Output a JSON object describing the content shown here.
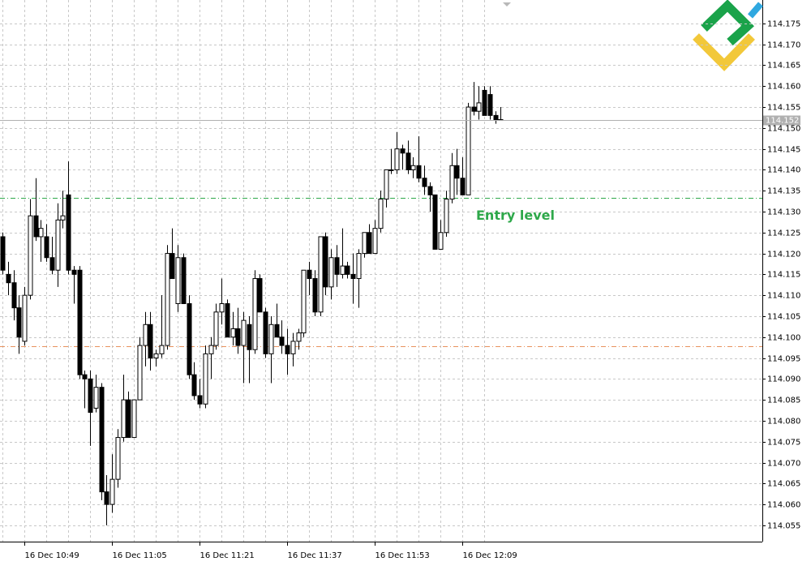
{
  "chart_data": {
    "type": "candlestick",
    "categories": [
      null,
      null,
      null,
      null,
      "16 Dec 10:49",
      null,
      null,
      null,
      null,
      null,
      null,
      null,
      null,
      null,
      null,
      null,
      null,
      null,
      null,
      null,
      "16 Dec 11:05",
      null,
      null,
      null,
      null,
      null,
      null,
      null,
      null,
      null,
      null,
      null,
      null,
      null,
      null,
      null,
      "16 Dec 11:21",
      null,
      null,
      null,
      null,
      null,
      null,
      null,
      null,
      null,
      null,
      null,
      null,
      null,
      null,
      null,
      "16 Dec 11:37",
      null,
      null,
      null,
      null,
      null,
      null,
      null,
      null,
      null,
      null,
      null,
      null,
      null,
      null,
      null,
      "16 Dec 11:53",
      null,
      null,
      null,
      null,
      null,
      null,
      null,
      null,
      null,
      null,
      null,
      null,
      null,
      null,
      null,
      "16 Dec 12:09",
      null,
      null,
      null,
      null,
      null,
      null,
      null
    ],
    "open": [
      114.124,
      114.115,
      114.113,
      114.107,
      114.099,
      114.11,
      114.129,
      114.124,
      114.124,
      114.119,
      114.116,
      114.128,
      114.134,
      114.116,
      114.116,
      114.091,
      114.09,
      114.083,
      114.088,
      114.063,
      114.06,
      114.066,
      114.076,
      114.085,
      114.076,
      114.085,
      114.098,
      114.103,
      114.095,
      114.096,
      114.098,
      114.12,
      114.108,
      114.119,
      114.108,
      114.091,
      114.086,
      114.084,
      114.096,
      114.098,
      114.106,
      114.108,
      114.1,
      114.102,
      114.098,
      114.103,
      114.097,
      114.114,
      114.106,
      114.096,
      114.103,
      114.1,
      114.098,
      114.096,
      114.099,
      114.101,
      114.116,
      114.114,
      114.106,
      114.124,
      114.112,
      114.119,
      114.115,
      114.117,
      114.115,
      114.114,
      114.12,
      114.125,
      114.12,
      114.126,
      114.133,
      114.14,
      114.14,
      114.145,
      114.144,
      114.14,
      114.141,
      114.138,
      114.136,
      114.134,
      114.121,
      114.125,
      114.133,
      114.141,
      114.138,
      114.134,
      114.155,
      114.154,
      114.159,
      114.158,
      114.153,
      114.152
    ],
    "high": [
      114.125,
      114.118,
      114.116,
      114.11,
      114.112,
      114.133,
      114.138,
      114.128,
      114.127,
      114.124,
      114.132,
      114.135,
      114.142,
      114.117,
      114.117,
      114.092,
      114.092,
      114.091,
      114.089,
      114.067,
      114.072,
      114.078,
      114.091,
      114.087,
      114.085,
      114.1,
      114.106,
      114.106,
      114.097,
      114.11,
      114.122,
      114.126,
      114.122,
      114.12,
      114.11,
      114.094,
      114.09,
      114.098,
      114.1,
      114.108,
      114.114,
      114.109,
      114.106,
      114.107,
      114.106,
      114.105,
      114.116,
      114.115,
      114.107,
      114.105,
      114.108,
      114.104,
      114.102,
      114.101,
      114.102,
      114.116,
      114.118,
      114.116,
      114.124,
      114.125,
      114.121,
      114.122,
      114.126,
      114.118,
      114.12,
      114.121,
      114.125,
      114.127,
      114.128,
      114.135,
      114.14,
      114.145,
      114.149,
      114.146,
      114.147,
      114.143,
      114.148,
      114.141,
      114.137,
      114.134,
      114.128,
      114.135,
      114.144,
      114.145,
      114.143,
      114.156,
      114.161,
      114.16,
      114.16,
      114.16,
      114.154,
      114.155
    ],
    "low": [
      114.115,
      114.11,
      114.104,
      114.096,
      114.098,
      114.109,
      114.123,
      114.118,
      114.118,
      114.115,
      114.112,
      114.126,
      114.115,
      114.108,
      114.09,
      114.083,
      114.074,
      114.082,
      114.061,
      114.055,
      114.058,
      114.064,
      114.075,
      114.076,
      114.076,
      114.085,
      114.093,
      114.092,
      114.093,
      114.095,
      114.097,
      114.114,
      114.106,
      114.108,
      114.09,
      114.085,
      114.083,
      114.083,
      114.09,
      114.097,
      114.103,
      114.1,
      114.098,
      114.096,
      114.089,
      114.089,
      114.096,
      114.106,
      114.095,
      114.089,
      114.1,
      114.096,
      114.091,
      114.093,
      114.097,
      114.1,
      114.11,
      114.105,
      114.105,
      114.11,
      114.109,
      114.112,
      114.114,
      114.114,
      114.108,
      114.107,
      114.119,
      114.12,
      114.12,
      114.125,
      114.131,
      114.139,
      114.139,
      114.14,
      114.139,
      114.138,
      114.137,
      114.134,
      114.13,
      114.121,
      114.121,
      114.124,
      114.132,
      114.134,
      114.134,
      114.134,
      114.153,
      114.152,
      114.153,
      114.152,
      114.151,
      114.152
    ],
    "close": [
      114.116,
      114.113,
      114.107,
      114.1,
      114.11,
      114.129,
      114.124,
      114.126,
      114.119,
      114.116,
      114.128,
      114.129,
      114.116,
      114.115,
      114.091,
      114.09,
      114.082,
      114.088,
      114.063,
      114.06,
      114.066,
      114.076,
      114.085,
      114.076,
      114.085,
      114.098,
      114.103,
      114.095,
      114.096,
      114.098,
      114.12,
      114.114,
      114.119,
      114.108,
      114.091,
      114.086,
      114.084,
      114.096,
      114.098,
      114.106,
      114.108,
      114.1,
      114.102,
      114.098,
      114.104,
      114.097,
      114.114,
      114.106,
      114.096,
      114.103,
      114.1,
      114.098,
      114.096,
      114.099,
      114.101,
      114.116,
      114.114,
      114.106,
      114.124,
      114.112,
      114.119,
      114.115,
      114.117,
      114.115,
      114.114,
      114.12,
      114.125,
      114.12,
      114.126,
      114.133,
      114.14,
      114.14,
      114.145,
      114.144,
      114.14,
      114.141,
      114.138,
      114.136,
      114.134,
      114.121,
      114.125,
      114.133,
      114.141,
      114.138,
      114.134,
      114.155,
      114.154,
      114.156,
      114.153,
      114.153,
      114.152,
      114.152
    ],
    "up_color": "#ffffff",
    "down_color": "#000000",
    "ylim": [
      114.0511,
      114.1806
    ],
    "yticks": [
      114.055,
      {
        "value": 114.06,
        "label": "114.060"
      },
      114.065,
      {
        "value": 114.07,
        "label": "114.070"
      },
      114.075,
      {
        "value": 114.08,
        "label": "114.080"
      },
      114.085,
      {
        "value": 114.09,
        "label": "114.090"
      },
      114.095,
      {
        "value": 114.1,
        "label": "114.100"
      },
      114.105,
      {
        "value": 114.11,
        "label": "114.110"
      },
      114.115,
      {
        "value": 114.12,
        "label": "114.120"
      },
      114.125,
      {
        "value": 114.13,
        "label": "114.130"
      },
      114.135,
      {
        "value": 114.14,
        "label": "114.140"
      },
      114.145,
      {
        "value": 114.15,
        "label": "114.150"
      },
      114.155,
      {
        "value": 114.16,
        "label": "114.160"
      },
      114.165,
      {
        "value": 114.17,
        "label": "114.170"
      },
      114.175
    ],
    "grid": true,
    "current_price": 114.152,
    "levels": [
      {
        "name": "Entry level",
        "value": 114.1333,
        "color": "#2ea84a"
      },
      {
        "value": 114.0978,
        "color": "#e8925e"
      }
    ]
  }
}
